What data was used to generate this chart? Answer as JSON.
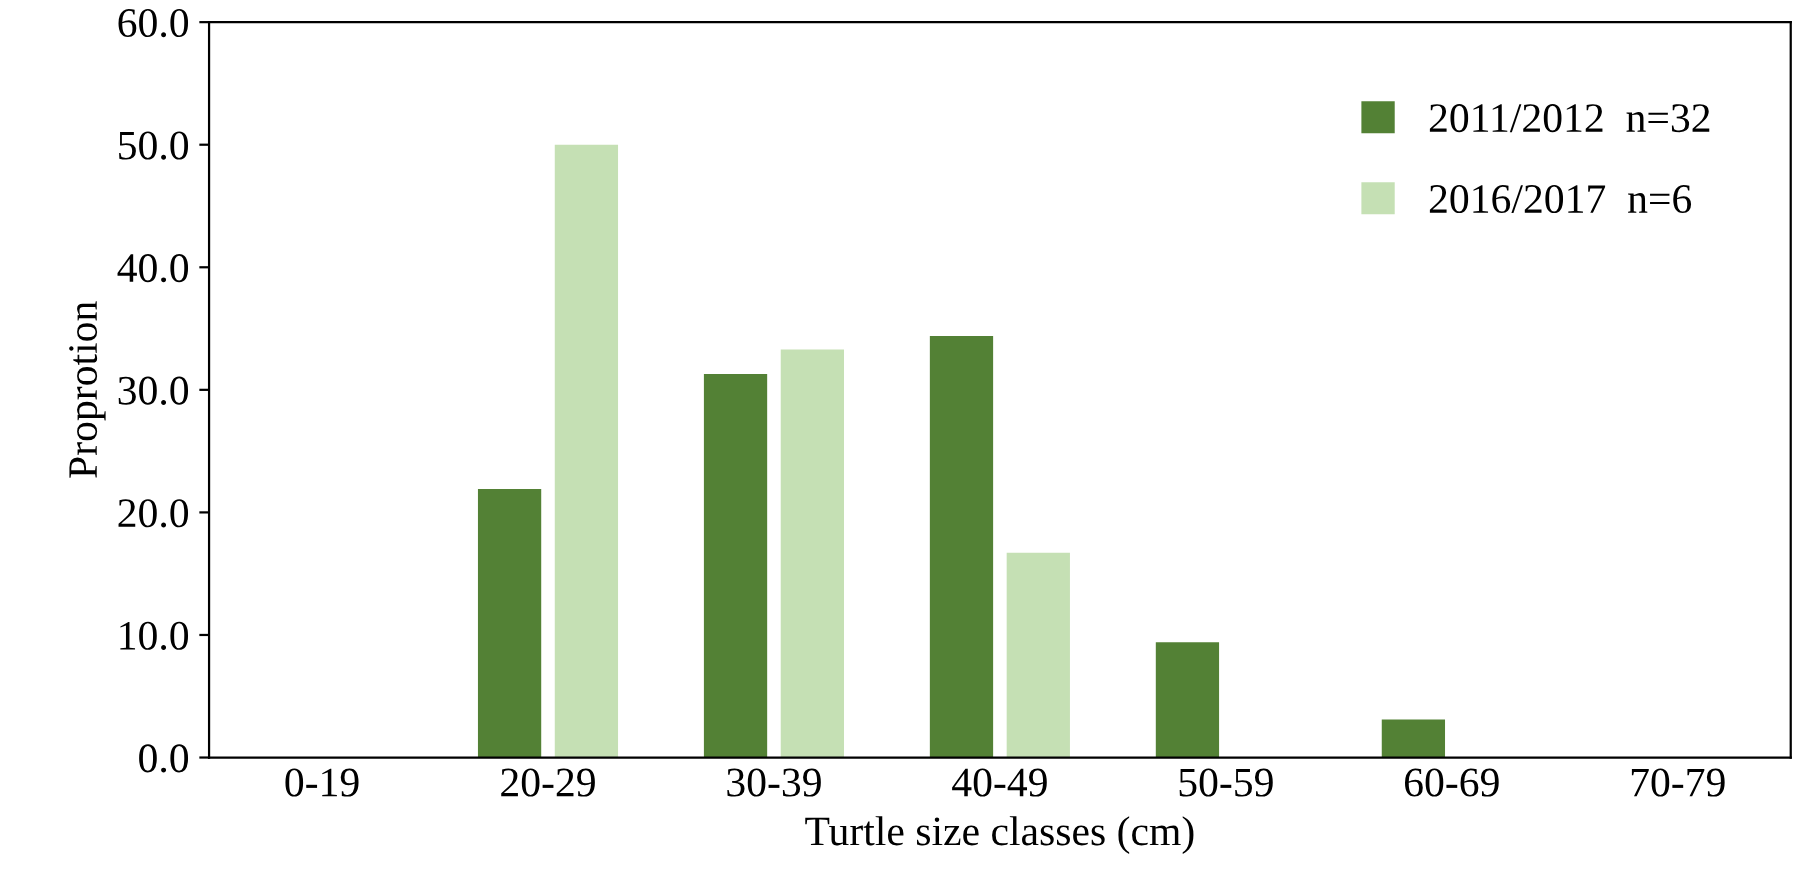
{
  "chart_data": {
    "type": "bar",
    "xlabel": "Turtle size classes (cm)",
    "ylabel": "Proprotion",
    "categories": [
      "0-19",
      "20-29",
      "30-39",
      "40-49",
      "50-59",
      "60-69",
      "70-79"
    ],
    "series": [
      {
        "name": "2011/2012  n=32",
        "color": "#538135",
        "values": [
          0,
          21.9,
          31.3,
          34.4,
          9.4,
          3.1,
          0
        ]
      },
      {
        "name": "2016/2017  n=6",
        "color": "#c5e0b4",
        "values": [
          0,
          50.0,
          33.3,
          16.7,
          0,
          0,
          0
        ]
      }
    ],
    "ylim": [
      0,
      60
    ],
    "yticks": [
      {
        "value": 0,
        "label": "0.0"
      },
      {
        "value": 10,
        "label": "10.0"
      },
      {
        "value": 20,
        "label": "20.0"
      },
      {
        "value": 30,
        "label": "30.0"
      },
      {
        "value": 40,
        "label": "40.0"
      },
      {
        "value": 50,
        "label": "50.0"
      },
      {
        "value": 60,
        "label": "60.0"
      }
    ],
    "grid": false,
    "legend": "top right"
  }
}
